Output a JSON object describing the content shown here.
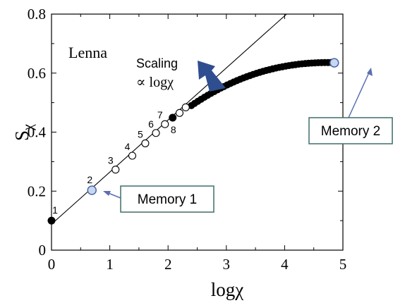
{
  "chart_data": {
    "type": "scatter",
    "title": "",
    "xlabel": "logχ",
    "ylabel_main": "S",
    "ylabel_sub": "χ",
    "xlim": [
      0,
      5
    ],
    "ylim": [
      0,
      0.8
    ],
    "x_ticks": [
      "0",
      "1",
      "2",
      "3",
      "4",
      "5"
    ],
    "y_ticks": [
      "0",
      "0.2",
      "0.4",
      "0.6",
      "0.8"
    ],
    "grid": false,
    "inset_label": "Lenna",
    "scaling_line": {
      "name": "Scaling ∝ logχ",
      "intercept": 0.088,
      "slope": 0.1765
    },
    "scaling_label_line1": "Scaling",
    "scaling_label_line2": "∝ logχ",
    "open_points": [
      {
        "label": "3",
        "x": 1.099,
        "y": 0.273
      },
      {
        "label": "4",
        "x": 1.386,
        "y": 0.32
      },
      {
        "label": "5",
        "x": 1.609,
        "y": 0.362
      },
      {
        "label": "6",
        "x": 1.792,
        "y": 0.397
      },
      {
        "label": "7",
        "x": 1.946,
        "y": 0.427
      },
      {
        "x": 2.197,
        "y": 0.465
      },
      {
        "x": 2.303,
        "y": 0.484
      }
    ],
    "filled_points": [
      {
        "label": "1",
        "x": 0,
        "y": 0.1
      },
      {
        "label": "8",
        "x": 2.079,
        "y": 0.449
      }
    ],
    "filled_curve": {
      "x_start": 2.4,
      "x_end": 4.8,
      "n": 44,
      "y_start": 0.49,
      "y_end": 0.636
    },
    "memory_points": [
      {
        "label": "2",
        "x": 0.693,
        "y": 0.203,
        "callout": "Memory 1"
      },
      {
        "x": 4.852,
        "y": 0.635,
        "callout": "Memory 2"
      }
    ],
    "colors": {
      "axis": "#000000",
      "memory_fill": "#c9d7ee",
      "memory_stroke": "#4a68a8",
      "arrow_fill": "#2f4e8f",
      "callout_border": "#3f6f6a"
    }
  }
}
